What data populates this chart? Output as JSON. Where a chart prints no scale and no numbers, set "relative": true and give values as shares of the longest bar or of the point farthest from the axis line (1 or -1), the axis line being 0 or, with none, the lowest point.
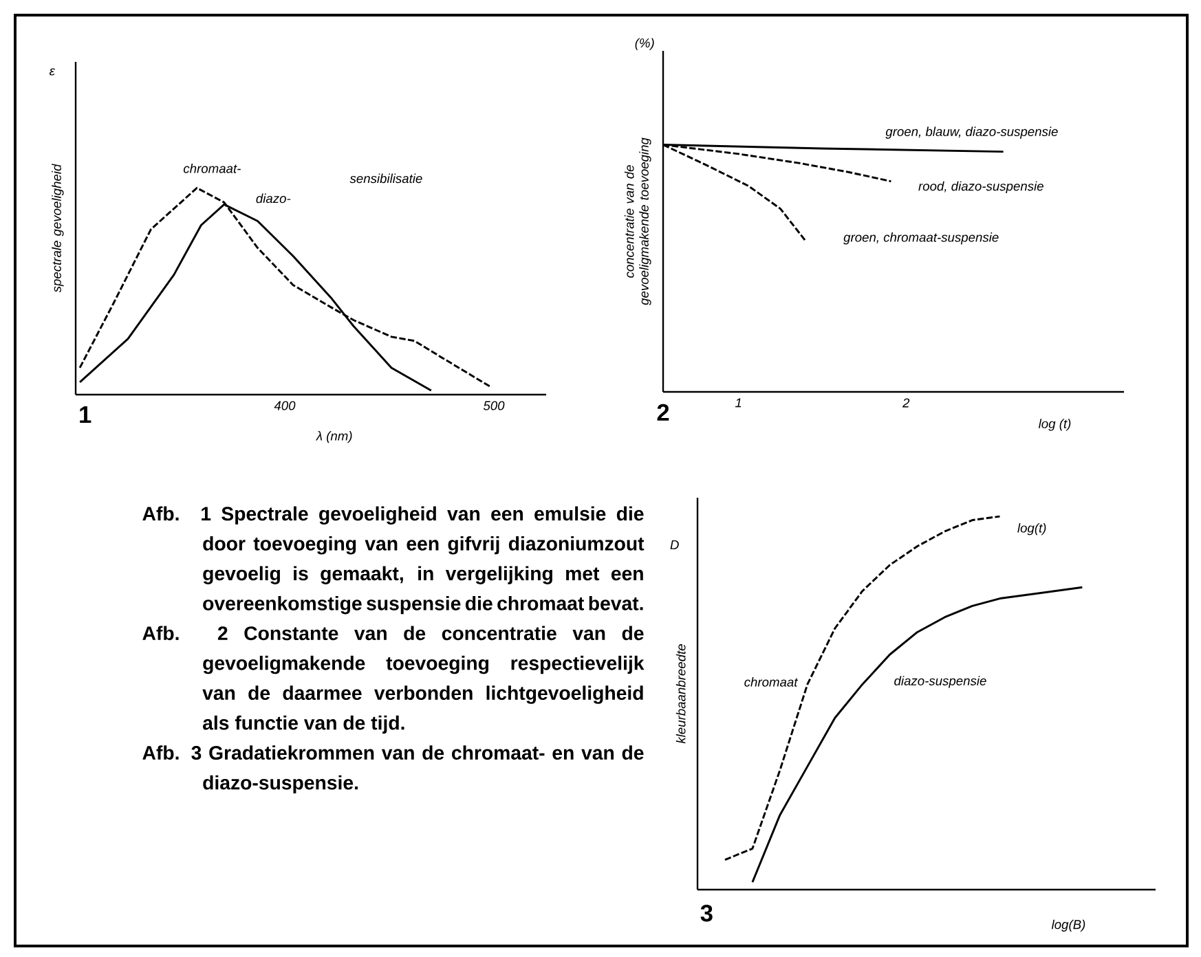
{
  "chart_data": [
    {
      "type": "line",
      "relative": true,
      "xlabel": "λ (nm)",
      "ylabel": "spectrale gevoeligheid",
      "xlim": [
        300,
        525
      ],
      "xticks": [
        400,
        500
      ],
      "tick_labels": "x",
      "annotations": [
        "ε",
        "sensibilisatie",
        "1"
      ],
      "series": [
        {
          "name": "chromaat-",
          "color": "#000000",
          "line_style": "dashed",
          "x": [
            302,
            318,
            336,
            358,
            371,
            387,
            404,
            426,
            433,
            451,
            462,
            475,
            498
          ],
          "values": [
            0.13,
            0.44,
            0.8,
            1.0,
            0.93,
            0.71,
            0.53,
            0.4,
            0.36,
            0.28,
            0.26,
            0.18,
            0.04
          ]
        },
        {
          "name": "diazo-",
          "color": "#000000",
          "line_style": "solid",
          "x": [
            302,
            325,
            347,
            360,
            371,
            387,
            404,
            422,
            433,
            451,
            470
          ],
          "values": [
            0.06,
            0.27,
            0.58,
            0.82,
            0.92,
            0.84,
            0.67,
            0.47,
            0.33,
            0.13,
            0.02
          ]
        }
      ]
    },
    {
      "type": "line",
      "relative": true,
      "xlabel": "log (t)",
      "ylabel": "concentratie van de gevoeligmakende toevoeging",
      "xlim": [
        0.55,
        3.3
      ],
      "xticks": [
        1,
        2
      ],
      "tick_labels": "x",
      "annotations": [
        "(%)",
        "2"
      ],
      "series": [
        {
          "name": "groen, blauw, diazo-suspensie",
          "color": "#000000",
          "line_style": "solid",
          "x": [
            0.55,
            1.5,
            2.58
          ],
          "values": [
            1.0,
            0.985,
            0.972
          ]
        },
        {
          "name": "rood, diazo-suspensie",
          "color": "#000000",
          "line_style": "dashed",
          "x": [
            0.55,
            1.0,
            1.36,
            1.66,
            1.91
          ],
          "values": [
            1.0,
            0.963,
            0.926,
            0.889,
            0.852
          ]
        },
        {
          "name": "groen, chromaat-suspensie",
          "color": "#000000",
          "line_style": "dashed",
          "x": [
            0.55,
            0.81,
            1.06,
            1.25,
            1.4
          ],
          "values": [
            1.0,
            0.917,
            0.833,
            0.741,
            0.611
          ]
        }
      ]
    },
    {
      "type": "other",
      "annotations": [
        "Afb. 1 Spectrale gevoeligheid van een emulsie die door toevoeging van een gifvrij diazoniumzout gevoelig is gemaakt, in vergelijking met een overeenkomstige suspensie die chromaat bevat.",
        "Afb. 2 Constante van de concentratie van de gevoeligmakende toevoeging respectievelijk van de daarmee verbonden lichtgevoeligheid als functie van de tijd.",
        "Afb. 3 Gradatiekrommen van de chromaat- en van de diazo-suspensie."
      ]
    },
    {
      "type": "line",
      "relative": true,
      "xlabel": "log(B)",
      "ylabel": "kleurbaanbreedte",
      "tick_labels": false,
      "categories": [
        null,
        null,
        null,
        null,
        null,
        null,
        null,
        null,
        null,
        null,
        null,
        null,
        null,
        null,
        null
      ],
      "annotations": [
        "log(t)",
        "D",
        "3"
      ],
      "series": [
        {
          "name": "chromaat",
          "color": "#000000",
          "line_style": "dashed",
          "values": [
            0.08,
            0.11,
            0.32,
            0.55,
            0.7,
            0.8,
            0.87,
            0.92,
            0.96,
            0.99,
            1.0,
            null,
            null,
            null,
            null
          ]
        },
        {
          "name": "diazo-suspensie",
          "color": "#000000",
          "line_style": "solid",
          "values": [
            null,
            0.02,
            0.2,
            0.33,
            0.46,
            0.55,
            0.63,
            0.69,
            0.73,
            0.76,
            0.78,
            0.79,
            0.8,
            0.81,
            null
          ]
        }
      ]
    }
  ]
}
